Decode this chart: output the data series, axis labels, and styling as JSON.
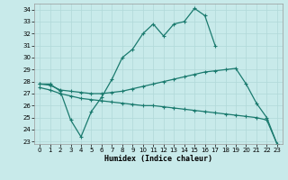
{
  "xlabel": "Humidex (Indice chaleur)",
  "background_color": "#c8eaea",
  "grid_color": "#b0d8d8",
  "line_color": "#1a7a6e",
  "xlim": [
    -0.5,
    23.5
  ],
  "ylim": [
    22.8,
    34.5
  ],
  "yticks": [
    23,
    24,
    25,
    26,
    27,
    28,
    29,
    30,
    31,
    32,
    33,
    34
  ],
  "xticks": [
    0,
    1,
    2,
    3,
    4,
    5,
    6,
    7,
    8,
    9,
    10,
    11,
    12,
    13,
    14,
    15,
    16,
    17,
    18,
    19,
    20,
    21,
    22,
    23
  ],
  "line1_x": [
    0,
    1,
    2,
    3,
    4,
    5,
    6,
    7,
    8,
    9,
    10,
    11,
    12,
    13,
    14,
    15,
    16,
    17,
    18,
    19,
    20,
    21,
    22,
    23
  ],
  "line1_y": [
    27.8,
    27.8,
    27.2,
    24.8,
    23.4,
    25.5,
    26.7,
    28.2,
    30.0,
    30.7,
    32.0,
    32.8,
    31.8,
    32.8,
    33.0,
    34.1,
    33.5,
    31.0,
    null,
    null,
    null,
    null,
    null,
    null
  ],
  "line2_x": [
    0,
    1,
    2,
    3,
    4,
    5,
    6,
    7,
    8,
    9,
    10,
    11,
    12,
    13,
    14,
    15,
    16,
    17,
    18,
    19,
    20,
    21,
    22,
    23
  ],
  "line2_y": [
    27.8,
    27.7,
    27.3,
    27.2,
    27.1,
    27.0,
    27.0,
    27.1,
    27.2,
    27.4,
    27.6,
    27.8,
    28.0,
    28.2,
    28.4,
    28.6,
    28.8,
    28.9,
    29.0,
    29.1,
    27.8,
    26.2,
    25.0,
    22.8
  ],
  "line3_x": [
    0,
    1,
    2,
    3,
    4,
    5,
    6,
    7,
    8,
    9,
    10,
    11,
    12,
    13,
    14,
    15,
    16,
    17,
    18,
    19,
    20,
    21,
    22,
    23
  ],
  "line3_y": [
    27.5,
    27.3,
    27.0,
    26.8,
    26.6,
    26.5,
    26.4,
    26.3,
    26.2,
    26.1,
    26.0,
    26.0,
    25.9,
    25.8,
    25.7,
    25.6,
    25.5,
    25.4,
    25.3,
    25.2,
    25.1,
    25.0,
    24.8,
    22.8
  ]
}
